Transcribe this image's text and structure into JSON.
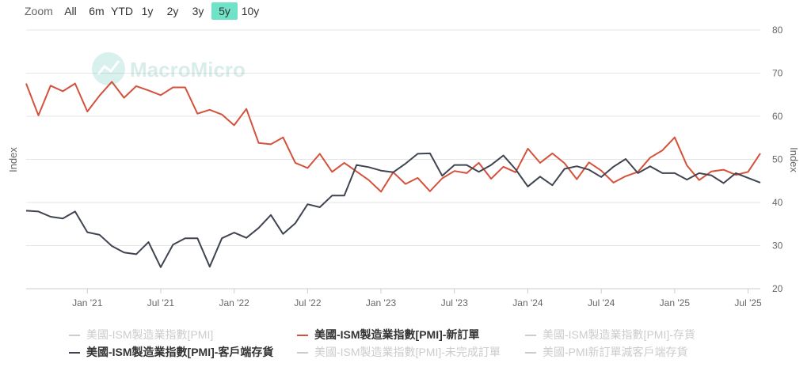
{
  "zoom": {
    "label": "Zoom",
    "buttons": [
      "All",
      "6m",
      "YTD",
      "1y",
      "2y",
      "3y",
      "5y",
      "10y"
    ],
    "active": "5y"
  },
  "watermark": "MacroMicro",
  "colors": {
    "new_orders": "#d4513c",
    "customer_inventories": "#3f4450",
    "hidden": "#cccccc",
    "active_zoom": "#6fe3c8"
  },
  "legend": [
    {
      "label": "美國-ISM製造業指數[PMI]",
      "visible": false,
      "color": "#cccccc"
    },
    {
      "label": "美國-ISM製造業指數[PMI]-新訂單",
      "visible": true,
      "color": "#d4513c"
    },
    {
      "label": "美國-ISM製造業指數[PMI]-存貨",
      "visible": false,
      "color": "#cccccc"
    },
    {
      "label": "美國-ISM製造業指數[PMI]-客戶端存貨",
      "visible": true,
      "color": "#3f4450"
    },
    {
      "label": "美國-ISM製造業指數[PMI]-未完成訂單",
      "visible": false,
      "color": "#cccccc"
    },
    {
      "label": "美國-PMI新訂單減客戶端存貨",
      "visible": false,
      "color": "#cccccc"
    }
  ],
  "chart_data": {
    "type": "line",
    "ylabel_left": "Index",
    "ylabel_right": "Index",
    "ylim": [
      20,
      80
    ],
    "yticks": [
      20,
      30,
      40,
      50,
      60,
      70,
      80
    ],
    "xlim": [
      "2020-08",
      "2025-08"
    ],
    "xticks": [
      {
        "date": "2021-01",
        "label": "Jan '21"
      },
      {
        "date": "2021-07",
        "label": "Jul '21"
      },
      {
        "date": "2022-01",
        "label": "Jan '22"
      },
      {
        "date": "2022-07",
        "label": "Jul '22"
      },
      {
        "date": "2023-01",
        "label": "Jan '23"
      },
      {
        "date": "2023-07",
        "label": "Jul '23"
      },
      {
        "date": "2024-01",
        "label": "Jan '24"
      },
      {
        "date": "2024-07",
        "label": "Jul '24"
      },
      {
        "date": "2025-01",
        "label": "Jan '25"
      },
      {
        "date": "2025-07",
        "label": "Jul '25"
      }
    ],
    "grid": true,
    "legend_position": "bottom",
    "x": [
      "2020-08",
      "2020-09",
      "2020-10",
      "2020-11",
      "2020-12",
      "2021-01",
      "2021-02",
      "2021-03",
      "2021-04",
      "2021-05",
      "2021-06",
      "2021-07",
      "2021-08",
      "2021-09",
      "2021-10",
      "2021-11",
      "2021-12",
      "2022-01",
      "2022-02",
      "2022-03",
      "2022-04",
      "2022-05",
      "2022-06",
      "2022-07",
      "2022-08",
      "2022-09",
      "2022-10",
      "2022-11",
      "2022-12",
      "2023-01",
      "2023-02",
      "2023-03",
      "2023-04",
      "2023-05",
      "2023-06",
      "2023-07",
      "2023-08",
      "2023-09",
      "2023-10",
      "2023-11",
      "2023-12",
      "2024-01",
      "2024-02",
      "2024-03",
      "2024-04",
      "2024-05",
      "2024-06",
      "2024-07",
      "2024-08",
      "2024-09",
      "2024-10",
      "2024-11",
      "2024-12",
      "2025-01",
      "2025-02",
      "2025-03",
      "2025-04",
      "2025-05",
      "2025-06",
      "2025-07",
      "2025-08"
    ],
    "series": [
      {
        "name": "美國-ISM製造業指數[PMI]-新訂單",
        "color": "#d4513c",
        "values": [
          67.6,
          60.2,
          67.1,
          65.8,
          67.6,
          61.1,
          64.8,
          68.0,
          64.3,
          67.0,
          66.0,
          64.9,
          66.7,
          66.7,
          60.6,
          61.5,
          60.4,
          57.9,
          61.7,
          53.8,
          53.5,
          55.1,
          49.2,
          48.0,
          51.3,
          47.1,
          49.2,
          47.2,
          45.2,
          42.5,
          47.0,
          44.3,
          45.7,
          42.6,
          45.6,
          47.3,
          46.8,
          49.2,
          45.5,
          48.3,
          47.0,
          52.5,
          49.2,
          51.4,
          49.1,
          45.4,
          49.3,
          47.4,
          44.6,
          46.1,
          47.1,
          50.4,
          52.1,
          55.1,
          48.6,
          45.2,
          47.2,
          47.6,
          46.4,
          47.1,
          51.4
        ]
      },
      {
        "name": "美國-ISM製造業指數[PMI]-客戶端存貨",
        "color": "#3f4450",
        "values": [
          38.1,
          37.9,
          36.7,
          36.3,
          37.9,
          33.1,
          32.5,
          29.9,
          28.4,
          28.0,
          30.8,
          25.0,
          30.2,
          31.7,
          31.7,
          25.1,
          31.7,
          33.0,
          31.8,
          34.1,
          37.1,
          32.7,
          35.2,
          39.6,
          38.9,
          41.6,
          41.6,
          48.7,
          48.2,
          47.4,
          47.0,
          49.0,
          51.3,
          51.4,
          46.2,
          48.7,
          48.7,
          47.1,
          48.7,
          50.9,
          47.7,
          43.7,
          46.0,
          44.0,
          47.8,
          48.4,
          47.6,
          45.9,
          48.3,
          50.1,
          46.8,
          48.4,
          46.8,
          46.8,
          45.3,
          46.8,
          46.3,
          44.5,
          46.8,
          45.7,
          44.6
        ]
      }
    ]
  }
}
